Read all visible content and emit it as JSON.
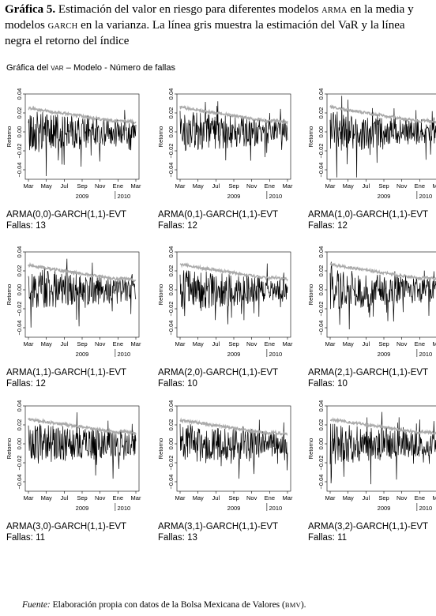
{
  "header": {
    "label": "Gráfica 5.",
    "text_parts": [
      "Estimación del valor en riesgo para diferentes modelos",
      "ARMA",
      "en la media y modelos",
      "GARCH",
      "en la varianza. La línea gris muestra la estimación del VaR y  la línea negra el retorno del índice"
    ]
  },
  "subtitle": [
    "Gráfica del",
    "VaR",
    "– Modelo - Número de fallas"
  ],
  "source": {
    "label": "Fuente:",
    "text": "Elaboración propia con datos de la Bolsa Mexicana de Valores (",
    "abbr": "BMV",
    "end": ")."
  },
  "chart_data": [
    {
      "type": "line",
      "model": "ARMA(0,0)-GARCH(1,1)-EVT",
      "fallas_label": "Fallas: 13",
      "ylabel": "Retorno",
      "ylim": [
        -0.05,
        0.04
      ],
      "yticks": [
        "-0.04",
        "-0.02",
        "0.00",
        "0.02",
        "0.04"
      ],
      "x_months": [
        "Mar",
        "May",
        "Jul",
        "Sep",
        "Nov",
        "Ene",
        "Mar"
      ],
      "years": [
        "2009",
        "2010"
      ],
      "series": [
        {
          "color": "#aaaaaa",
          "var_start": 0.025,
          "var_end": 0.008
        },
        {
          "color": "#000000",
          "returns": "daily"
        }
      ]
    },
    {
      "type": "line",
      "model": "ARMA(0,1)-GARCH(1,1)-EVT",
      "fallas_label": "Fallas: 12",
      "ylabel": "Retorno",
      "ylim": [
        -0.05,
        0.04
      ],
      "yticks": [
        "-0.04",
        "-0.02",
        "0.00",
        "0.02",
        "0.04"
      ],
      "x_months": [
        "Mar",
        "May",
        "Jul",
        "Sep",
        "Nov",
        "Ene",
        "Mar"
      ],
      "years": [
        "2009",
        "2010"
      ],
      "series": [
        {
          "color": "#aaaaaa",
          "var_start": 0.026,
          "var_end": 0.008
        },
        {
          "color": "#000000",
          "returns": "daily"
        }
      ]
    },
    {
      "type": "line",
      "model": "ARMA(1,0)-GARCH(1,1)-EVT",
      "fallas_label": "Fallas: 12",
      "ylabel": "Retorno",
      "ylim": [
        -0.05,
        0.04
      ],
      "yticks": [
        "-0.04",
        "-0.02",
        "0.00",
        "0.02",
        "0.04"
      ],
      "x_months": [
        "Mar",
        "May",
        "Jul",
        "Sep",
        "Nov",
        "Ene",
        "Mar"
      ],
      "years": [
        "2009",
        "2010"
      ],
      "series": [
        {
          "color": "#aaaaaa",
          "var_start": 0.026,
          "var_end": 0.008
        },
        {
          "color": "#000000",
          "returns": "daily"
        }
      ]
    },
    {
      "type": "line",
      "model": "ARMA(1,1)-GARCH(1,1)-EVT",
      "fallas_label": "Fallas: 12",
      "ylabel": "Retorno",
      "ylim": [
        -0.05,
        0.04
      ],
      "yticks": [
        "-0.04",
        "-0.02",
        "0.00",
        "0.02",
        "0.04"
      ],
      "x_months": [
        "Mar",
        "May",
        "Jul",
        "Sep",
        "Nov",
        "Ene",
        "Mar"
      ],
      "years": [
        "2009",
        "2010"
      ],
      "series": [
        {
          "color": "#aaaaaa",
          "var_start": 0.026,
          "var_end": 0.008
        },
        {
          "color": "#000000",
          "returns": "daily"
        }
      ]
    },
    {
      "type": "line",
      "model": "ARMA(2,0)-GARCH(1,1)-EVT",
      "fallas_label": "Fallas: 10",
      "ylabel": "Retorno",
      "ylim": [
        -0.05,
        0.04
      ],
      "yticks": [
        "-0.04",
        "-0.02",
        "0.00",
        "0.02",
        "0.04"
      ],
      "x_months": [
        "Mar",
        "May",
        "Jul",
        "Sep",
        "Nov",
        "Ene",
        "Mar"
      ],
      "years": [
        "2009",
        "2010"
      ],
      "series": [
        {
          "color": "#aaaaaa",
          "var_start": 0.027,
          "var_end": 0.009
        },
        {
          "color": "#000000",
          "returns": "daily"
        }
      ]
    },
    {
      "type": "line",
      "model": "ARMA(2,1)-GARCH(1,1)-EVT",
      "fallas_label": "Fallas: 10",
      "ylabel": "Retorno",
      "ylim": [
        -0.05,
        0.04
      ],
      "yticks": [
        "-0.04",
        "-0.02",
        "0.00",
        "0.02",
        "0.04"
      ],
      "x_months": [
        "Mar",
        "May",
        "Jul",
        "Sep",
        "Nov",
        "Ene",
        "Mar"
      ],
      "years": [
        "2009",
        "2010"
      ],
      "series": [
        {
          "color": "#aaaaaa",
          "var_start": 0.027,
          "var_end": 0.009
        },
        {
          "color": "#000000",
          "returns": "daily"
        }
      ]
    },
    {
      "type": "line",
      "model": "ARMA(3,0)-GARCH(1,1)-EVT",
      "fallas_label": "Fallas: 11",
      "ylabel": "Retorno",
      "ylim": [
        -0.05,
        0.04
      ],
      "yticks": [
        "-0.04",
        "-0.02",
        "0.00",
        "0.02",
        "0.04"
      ],
      "x_months": [
        "Mar",
        "May",
        "Jul",
        "Sep",
        "Nov",
        "Ene",
        "Mar"
      ],
      "years": [
        "2009",
        "2010"
      ],
      "series": [
        {
          "color": "#aaaaaa",
          "var_start": 0.026,
          "var_end": 0.009
        },
        {
          "color": "#000000",
          "returns": "daily"
        }
      ]
    },
    {
      "type": "line",
      "model": "ARMA(3,1)-GARCH(1,1)-EVT",
      "fallas_label": "Fallas: 13",
      "ylabel": "Retorno",
      "ylim": [
        -0.05,
        0.04
      ],
      "yticks": [
        "-0.04",
        "-0.02",
        "0.00",
        "0.02",
        "0.04"
      ],
      "x_months": [
        "Mar",
        "May",
        "Jul",
        "Sep",
        "Nov",
        "Ene",
        "Mar"
      ],
      "years": [
        "2009",
        "2010"
      ],
      "series": [
        {
          "color": "#aaaaaa",
          "var_start": 0.025,
          "var_end": 0.008
        },
        {
          "color": "#000000",
          "returns": "daily"
        }
      ]
    },
    {
      "type": "line",
      "model": "ARMA(3,2)-GARCH(1,1)-EVT",
      "fallas_label": "Fallas: 11",
      "ylabel": "Retorno",
      "ylim": [
        -0.05,
        0.04
      ],
      "yticks": [
        "-0.04",
        "-0.02",
        "0.00",
        "0.02",
        "0.04"
      ],
      "x_months": [
        "Mar",
        "May",
        "Jul",
        "Sep",
        "Nov",
        "Ene",
        "Mar"
      ],
      "years": [
        "2009",
        "2010"
      ],
      "series": [
        {
          "color": "#aaaaaa",
          "var_start": 0.026,
          "var_end": 0.009
        },
        {
          "color": "#000000",
          "returns": "daily"
        }
      ]
    }
  ]
}
